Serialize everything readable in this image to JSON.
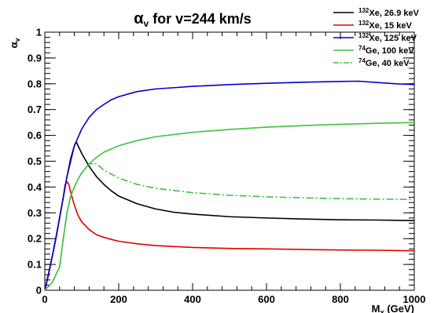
{
  "chart_data": {
    "type": "line",
    "title": "αv for v=244 km/s",
    "xlabel": "Mχ (GeV)",
    "ylabel": "αv",
    "xlim": [
      0,
      1000
    ],
    "ylim": [
      0,
      1
    ],
    "x_ticks": [
      "0",
      "200",
      "400",
      "600",
      "800",
      "1000"
    ],
    "y_ticks": [
      "0",
      "0.1",
      "0.2",
      "0.3",
      "0.4",
      "0.5",
      "0.6",
      "0.7",
      "0.8",
      "0.9",
      "1"
    ],
    "grid": false,
    "legend_position": "top-right",
    "series": [
      {
        "name": "132Xe, 26.9 keV",
        "legend_sup": "132",
        "legend_text": "Xe, 26.9 keV",
        "color": "#000000",
        "style": "solid",
        "x": [
          0,
          10,
          20,
          30,
          40,
          50,
          60,
          70,
          80,
          85,
          90,
          100,
          110,
          120,
          140,
          160,
          180,
          200,
          250,
          300,
          350,
          400,
          500,
          600,
          700,
          800,
          900,
          1000
        ],
        "y": [
          0,
          0.06,
          0.13,
          0.2,
          0.28,
          0.36,
          0.44,
          0.51,
          0.56,
          0.575,
          0.56,
          0.53,
          0.505,
          0.48,
          0.44,
          0.41,
          0.385,
          0.365,
          0.335,
          0.315,
          0.302,
          0.295,
          0.285,
          0.28,
          0.276,
          0.273,
          0.272,
          0.27
        ]
      },
      {
        "name": "132Xe, 15 keV",
        "legend_sup": "132",
        "legend_text": "Xe, 15 keV",
        "color": "#e00000",
        "style": "solid",
        "x": [
          0,
          10,
          20,
          30,
          40,
          50,
          55,
          60,
          65,
          70,
          80,
          90,
          100,
          120,
          140,
          160,
          180,
          200,
          250,
          300,
          400,
          500,
          600,
          700,
          800,
          900,
          1000
        ],
        "y": [
          0,
          0.06,
          0.13,
          0.2,
          0.28,
          0.36,
          0.41,
          0.42,
          0.41,
          0.38,
          0.33,
          0.29,
          0.265,
          0.235,
          0.215,
          0.205,
          0.197,
          0.19,
          0.18,
          0.173,
          0.166,
          0.162,
          0.16,
          0.158,
          0.156,
          0.155,
          0.153
        ]
      },
      {
        "name": "132Xe, 125 keV",
        "legend_sup": "132",
        "legend_text": "Xe, 125 keV",
        "color": "#0000d0",
        "style": "solid",
        "x": [
          0,
          20,
          40,
          60,
          80,
          100,
          120,
          140,
          160,
          180,
          200,
          250,
          300,
          350,
          400,
          500,
          600,
          700,
          800,
          850,
          900,
          950,
          1000
        ],
        "y": [
          0,
          0.13,
          0.28,
          0.44,
          0.56,
          0.625,
          0.67,
          0.7,
          0.72,
          0.738,
          0.75,
          0.77,
          0.78,
          0.785,
          0.79,
          0.797,
          0.802,
          0.806,
          0.809,
          0.81,
          0.805,
          0.8,
          0.797
        ]
      },
      {
        "name": "74Ge, 100 keV",
        "legend_sup": "74",
        "legend_text": "Ge, 100 keV",
        "color": "#40c040",
        "style": "solid",
        "x": [
          0,
          20,
          40,
          50,
          60,
          70,
          80,
          90,
          100,
          120,
          140,
          160,
          200,
          250,
          300,
          400,
          500,
          600,
          700,
          800,
          900,
          1000
        ],
        "y": [
          0,
          0.03,
          0.09,
          0.2,
          0.3,
          0.365,
          0.4,
          0.43,
          0.455,
          0.49,
          0.515,
          0.535,
          0.56,
          0.58,
          0.595,
          0.612,
          0.623,
          0.632,
          0.638,
          0.643,
          0.647,
          0.65
        ]
      },
      {
        "name": "74Ge, 40 keV",
        "legend_sup": "74",
        "legend_text": "Ge, 40 keV",
        "color": "#40c040",
        "style": "dashdot",
        "x": [
          0,
          20,
          40,
          50,
          60,
          70,
          80,
          90,
          100,
          120,
          140,
          160,
          180,
          200,
          250,
          300,
          400,
          500,
          600,
          700,
          800,
          900,
          1000
        ],
        "y": [
          0,
          0.03,
          0.09,
          0.2,
          0.3,
          0.365,
          0.4,
          0.43,
          0.455,
          0.49,
          0.49,
          0.465,
          0.45,
          0.435,
          0.41,
          0.395,
          0.378,
          0.368,
          0.362,
          0.358,
          0.355,
          0.353,
          0.352
        ]
      }
    ]
  }
}
